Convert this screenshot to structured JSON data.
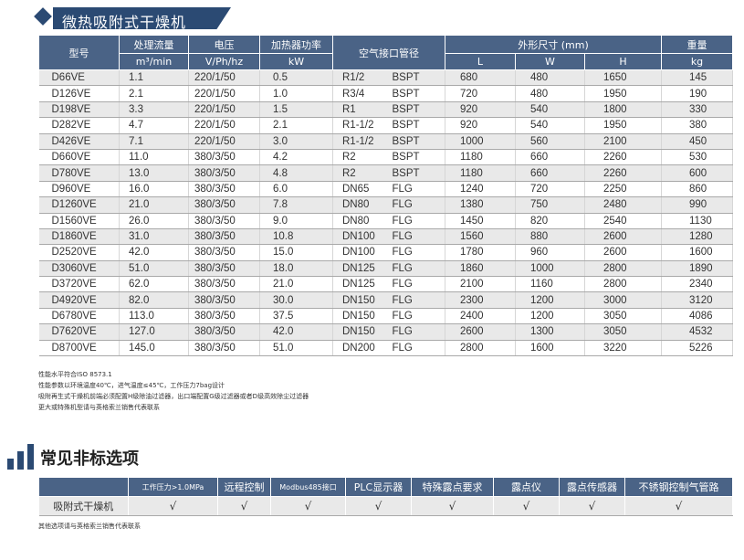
{
  "title": "微热吸附式干燥机",
  "spec_table": {
    "headers": {
      "model": "型号",
      "flow": "处理流量",
      "voltage": "电压",
      "heater": "加热器功率",
      "connection": "空气接口管径",
      "dimensions": "外形尺寸 (mm)",
      "weight": "重量"
    },
    "units": {
      "flow": "m³/min",
      "voltage": "V/Ph/hz",
      "heater": "kW",
      "L": "L",
      "W": "W",
      "H": "H",
      "weight": "kg"
    },
    "rows": [
      [
        "D66VE",
        "1.1",
        "220/1/50",
        "0.5",
        "R1/2",
        "BSPT",
        "680",
        "480",
        "1650",
        "145"
      ],
      [
        "D126VE",
        "2.1",
        "220/1/50",
        "1.0",
        "R3/4",
        "BSPT",
        "720",
        "480",
        "1950",
        "190"
      ],
      [
        "D198VE",
        "3.3",
        "220/1/50",
        "1.5",
        "R1",
        "BSPT",
        "920",
        "540",
        "1800",
        "330"
      ],
      [
        "D282VE",
        "4.7",
        "220/1/50",
        "2.1",
        "R1-1/2",
        "BSPT",
        "920",
        "540",
        "1950",
        "380"
      ],
      [
        "D426VE",
        "7.1",
        "220/1/50",
        "3.0",
        "R1-1/2",
        "BSPT",
        "1000",
        "560",
        "2100",
        "450"
      ],
      [
        "D660VE",
        "11.0",
        "380/3/50",
        "4.2",
        "R2",
        "BSPT",
        "1180",
        "660",
        "2260",
        "530"
      ],
      [
        "D780VE",
        "13.0",
        "380/3/50",
        "4.8",
        "R2",
        "BSPT",
        "1180",
        "660",
        "2260",
        "600"
      ],
      [
        "D960VE",
        "16.0",
        "380/3/50",
        "6.0",
        "DN65",
        "FLG",
        "1240",
        "720",
        "2250",
        "860"
      ],
      [
        "D1260VE",
        "21.0",
        "380/3/50",
        "7.8",
        "DN80",
        "FLG",
        "1380",
        "750",
        "2480",
        "990"
      ],
      [
        "D1560VE",
        "26.0",
        "380/3/50",
        "9.0",
        "DN80",
        "FLG",
        "1450",
        "820",
        "2540",
        "1130"
      ],
      [
        "D1860VE",
        "31.0",
        "380/3/50",
        "10.8",
        "DN100",
        "FLG",
        "1560",
        "880",
        "2600",
        "1280"
      ],
      [
        "D2520VE",
        "42.0",
        "380/3/50",
        "15.0",
        "DN100",
        "FLG",
        "1780",
        "960",
        "2600",
        "1600"
      ],
      [
        "D3060VE",
        "51.0",
        "380/3/50",
        "18.0",
        "DN125",
        "FLG",
        "1860",
        "1000",
        "2800",
        "1890"
      ],
      [
        "D3720VE",
        "62.0",
        "380/3/50",
        "21.0",
        "DN125",
        "FLG",
        "2100",
        "1160",
        "2800",
        "2340"
      ],
      [
        "D4920VE",
        "82.0",
        "380/3/50",
        "30.0",
        "DN150",
        "FLG",
        "2300",
        "1200",
        "3000",
        "3120"
      ],
      [
        "D6780VE",
        "113.0",
        "380/3/50",
        "37.5",
        "DN150",
        "FLG",
        "2400",
        "1200",
        "3050",
        "4086"
      ],
      [
        "D7620VE",
        "127.0",
        "380/3/50",
        "42.0",
        "DN150",
        "FLG",
        "2600",
        "1300",
        "3050",
        "4532"
      ],
      [
        "D8700VE",
        "145.0",
        "380/3/50",
        "51.0",
        "DN200",
        "FLG",
        "2800",
        "1600",
        "3220",
        "5226"
      ]
    ]
  },
  "notes": [
    "性能水平符合ISO 8573.1",
    "性能参数以环境温度40℃，进气温度≤45℃，工作压力7bag设计",
    "吸附再生式干燥机前端必须配置H级除油过滤器，出口端配置G级过滤器或者D级高效除尘过滤器",
    "更大或特殊机型请与英格索兰销售代表联系"
  ],
  "section2": {
    "title": "常见非标选项",
    "headers": [
      "工作压力>1.0MPa",
      "远程控制",
      "Modbus485接口",
      "PLC显示器",
      "特殊露点要求",
      "露点仪",
      "露点传感器",
      "不锈钢控制气管路"
    ],
    "row_label": "吸附式干燥机",
    "checks": [
      "√",
      "√",
      "√",
      "√",
      "√",
      "√",
      "√",
      "√"
    ],
    "note": "其他选项请与英格索兰销售代表联系"
  },
  "colors": {
    "header_bg": "#4a6386",
    "title_bar": "#2b4a73",
    "row_alt": "#e9e9e9"
  }
}
